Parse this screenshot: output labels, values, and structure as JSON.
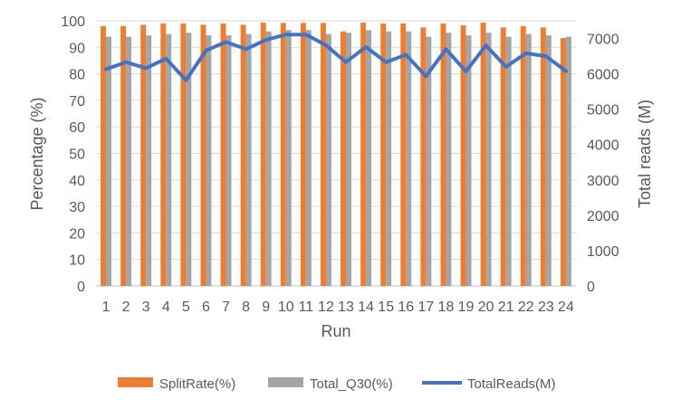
{
  "chart_data": {
    "type": "bar",
    "xlabel": "Run",
    "ylabel": "Percentage (%)",
    "y2label": "Total reads (M)",
    "ylim": [
      0,
      100
    ],
    "y2lim": [
      0,
      7500
    ],
    "yticks": [
      0,
      10,
      20,
      30,
      40,
      50,
      60,
      70,
      80,
      90,
      100
    ],
    "y2ticks": [
      0,
      1000,
      2000,
      3000,
      4000,
      5000,
      6000,
      7000
    ],
    "categories": [
      "1",
      "2",
      "3",
      "4",
      "5",
      "6",
      "7",
      "8",
      "9",
      "10",
      "11",
      "12",
      "13",
      "14",
      "15",
      "16",
      "17",
      "18",
      "19",
      "20",
      "21",
      "22",
      "23",
      "24"
    ],
    "grid": true,
    "legend_position": "bottom",
    "series": [
      {
        "name": "SplitRate(%)",
        "type": "bar",
        "color": "#ED7D31",
        "axis": "left",
        "values": [
          98,
          98,
          98.5,
          99,
          99,
          98.5,
          99,
          98.5,
          99.3,
          99.2,
          99.2,
          99.2,
          96,
          99.3,
          99,
          99,
          97.5,
          99,
          98.3,
          99.3,
          97.5,
          98,
          97.5,
          93.5
        ]
      },
      {
        "name": "Total_Q30(%)",
        "type": "bar",
        "color": "#A5A5A5",
        "axis": "left",
        "values": [
          94,
          94,
          94.5,
          95,
          95.5,
          94.5,
          94.5,
          95,
          96,
          96.5,
          96.5,
          95,
          95.5,
          96.5,
          96,
          96,
          94,
          95.5,
          94.5,
          95.5,
          94,
          95,
          94.5,
          94
        ]
      },
      {
        "name": "TotalReads(M)",
        "type": "line",
        "color": "#4472C4",
        "axis": "right",
        "values": [
          6130,
          6330,
          6160,
          6430,
          5820,
          6660,
          6900,
          6700,
          6960,
          7110,
          7110,
          6810,
          6330,
          6760,
          6330,
          6540,
          5930,
          6700,
          6070,
          6800,
          6200,
          6580,
          6500,
          6080
        ]
      }
    ]
  }
}
